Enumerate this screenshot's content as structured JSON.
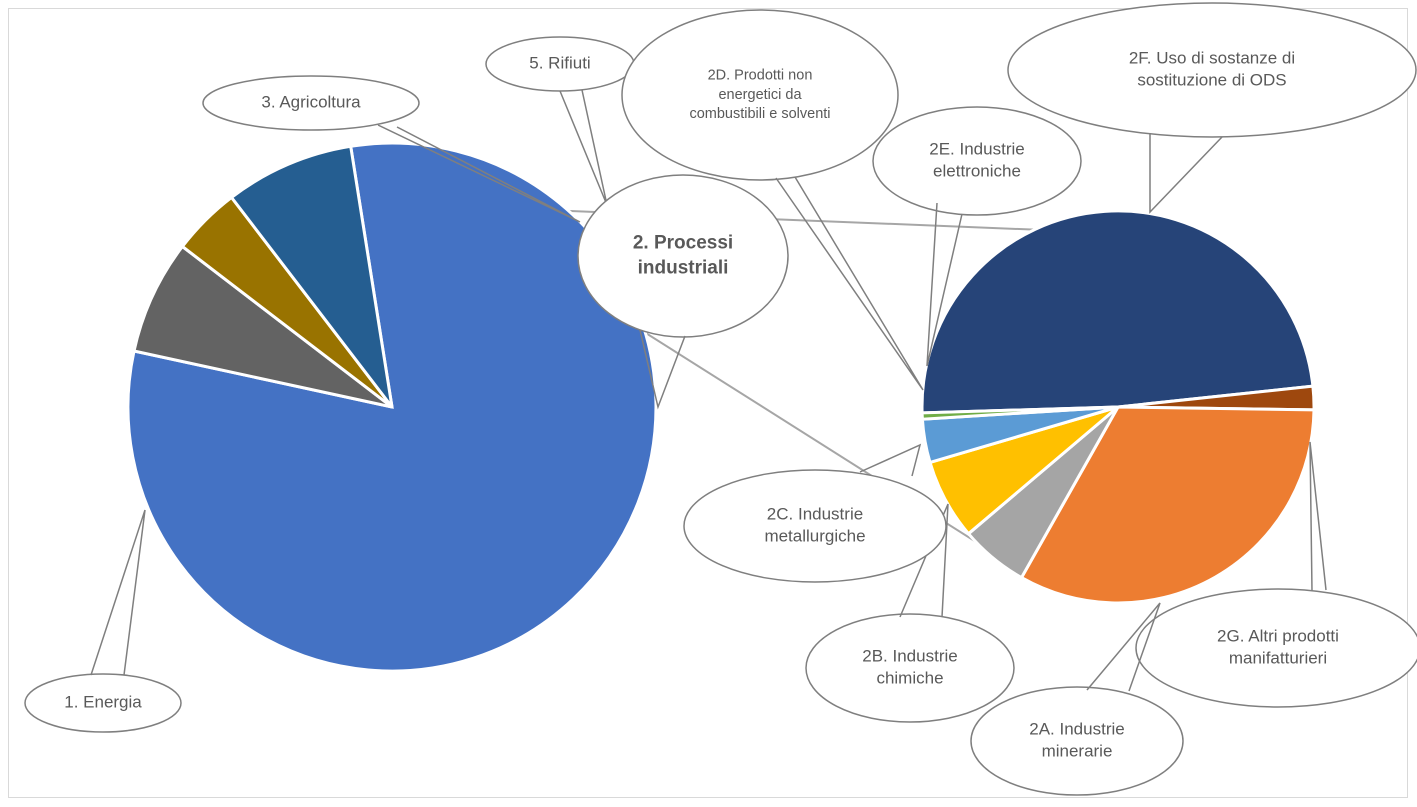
{
  "chart_data": {
    "type": "pie",
    "subtype": "pie-of-pie",
    "grid": false,
    "legend": "none",
    "main_pie": {
      "slices": [
        {
          "label": "1. Energia",
          "value": 80.9,
          "color": "#4472C4"
        },
        {
          "label": "3. Agricoltura",
          "value": 7.0,
          "color": "#636363"
        },
        {
          "label": "5. Rifiuti",
          "value": 4.2,
          "color": "#997300"
        },
        {
          "label": "2. Processi industriali",
          "value": 7.9,
          "color": "#255E91"
        }
      ]
    },
    "secondary_pie": {
      "parent": "2. Processi industriali",
      "slices": [
        {
          "label": "2F. Uso di sostanze di sostituzione di ODS",
          "value": 47.8,
          "color": "#264478"
        },
        {
          "label": "2G. Altri prodotti manifatturieri",
          "value": 1.9,
          "color": "#9E480E"
        },
        {
          "label": "2A. Industrie minerarie",
          "value": 32.3,
          "color": "#ED7D31"
        },
        {
          "label": "2B. Industrie chimiche",
          "value": 5.5,
          "color": "#A5A5A5"
        },
        {
          "label": "2C. Industrie metallurgiche",
          "value": 6.5,
          "color": "#FFC000"
        },
        {
          "label": "2D. Prodotti non energetici da combustibili e solventi",
          "value": 3.5,
          "color": "#5B9BD5"
        },
        {
          "label": "2E. Industrie elettroniche",
          "value": 0.5,
          "color": "#70AD47"
        }
      ]
    },
    "callouts": {
      "energia": [
        "1. Energia"
      ],
      "agricoltura": [
        "3.  Agricoltura"
      ],
      "rifiuti": [
        "5.  Rifiuti"
      ],
      "processi": [
        "2.  Processi",
        "industriali"
      ],
      "d2": [
        "2D.  Prodotti non",
        "energetici da",
        "combustibili e solventi"
      ],
      "e2": [
        "2E.  Industrie",
        "elettroniche"
      ],
      "f2": [
        "2F.  Uso di sostanze di",
        "sostituzione di ODS"
      ],
      "g2": [
        "2G.  Altri prodotti",
        "manifatturieri"
      ],
      "a2": [
        "2A.  Industrie",
        "minerarie"
      ],
      "b2": [
        "2B.  Industrie",
        "chimiche"
      ],
      "c2": [
        "2C.  Industrie",
        "metallurgiche"
      ]
    }
  }
}
